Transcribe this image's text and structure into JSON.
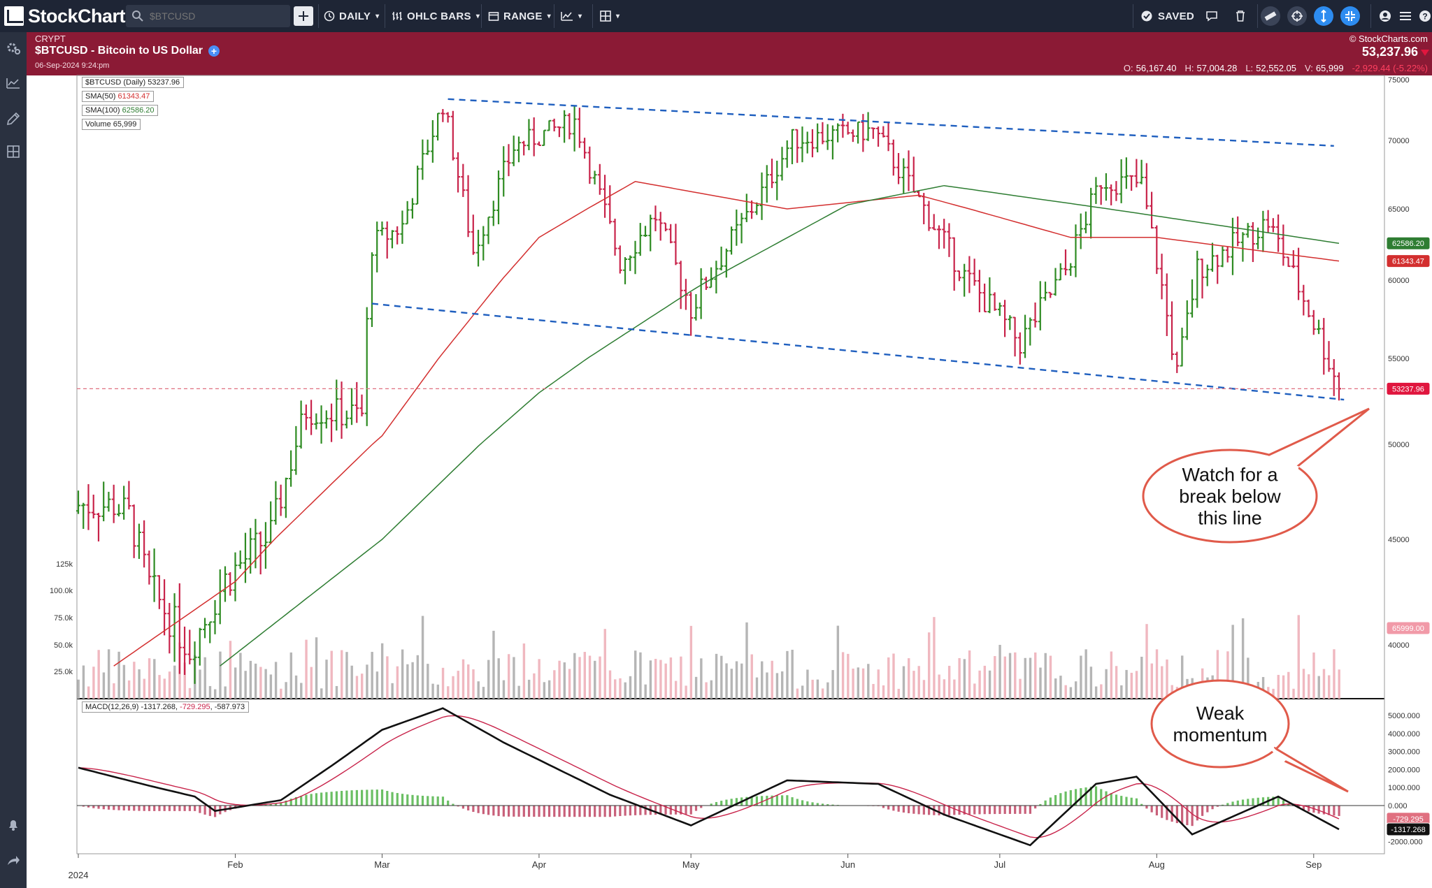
{
  "toolbar": {
    "logo_text": "StockCharts",
    "search_placeholder": "$BTCUSD",
    "period_label": "DAILY",
    "chart_type_label": "OHLC BARS",
    "range_label": "RANGE",
    "saved_label": "SAVED"
  },
  "header": {
    "exchange": "CRYPT",
    "title": "$BTCUSD - Bitcoin to US Dollar",
    "datetime": "06-Sep-2024 9:24:pm",
    "copyright": "© StockCharts.com",
    "last_price": "53,237.96",
    "ohlc": {
      "open_label": "O:",
      "open": "56,167.40",
      "high_label": "H:",
      "high": "57,004.28",
      "low_label": "L:",
      "low": "52,552.05",
      "vol_label": "V:",
      "vol": "65,999",
      "change": "-2,929.44 (-5.22%)"
    }
  },
  "legend": {
    "price": "$BTCUSD (Daily) 53237.96",
    "sma50_label": "SMA(50)",
    "sma50_value": "61343.47",
    "sma100_label": "SMA(100)",
    "sma100_value": "62586.20",
    "volume_label": "Volume",
    "volume_value": "65,999",
    "macd_params": "MACD(12,26,9)",
    "macd_value": "-1317.268",
    "macd_signal": "-729.295",
    "macd_hist": "-587.973"
  },
  "annotations": {
    "callout1": [
      "Watch for a",
      "break below",
      "this line"
    ],
    "callout2": [
      "Weak",
      "momentum"
    ]
  },
  "colors": {
    "frame": "#8b1a35",
    "toolbar": "#1e2535",
    "up_bar": "#2e8b22",
    "down_bar": "#c8234a",
    "sma50": "#d32f2f",
    "sma100": "#2e7d32",
    "trendline": "#1f5fbf",
    "callout": "#e05a4a"
  },
  "chart_data": {
    "type": "ohlc",
    "price_axis": {
      "min": 39000,
      "max": 75000,
      "ticks": [
        40000,
        45000,
        50000,
        55000,
        60000,
        65000,
        70000,
        75000
      ]
    },
    "x_labels": [
      "2024",
      "Feb",
      "Mar",
      "Apr",
      "May",
      "Jun",
      "Jul",
      "Aug",
      "Sep"
    ],
    "last_price_tag": "53237.96",
    "sma50_tag": "61343.47",
    "sma100_tag": "62586.20",
    "volume_axis": {
      "ticks": [
        "25.0k",
        "50.0k",
        "75.0k",
        "100.0k",
        "125k"
      ]
    },
    "volume_tag": "65999.00",
    "macd_axis": {
      "min": -2000,
      "max": 5000,
      "ticks": [
        "5000.000",
        "4000.000",
        "3000.000",
        "2000.000",
        "1000.000",
        "0.000",
        "-1000.000",
        "-2000.000"
      ]
    },
    "macd_tag": "-1317.268",
    "signal_tag": "-729.295",
    "price_close_anchors": [
      {
        "date": "2024-01-08",
        "close": 46800
      },
      {
        "date": "2024-01-11",
        "close": 46300
      },
      {
        "date": "2024-01-15",
        "close": 42800
      },
      {
        "date": "2024-01-23",
        "close": 39800
      },
      {
        "date": "2024-01-30",
        "close": 43100
      },
      {
        "date": "2024-02-08",
        "close": 45300
      },
      {
        "date": "2024-02-15",
        "close": 52000
      },
      {
        "date": "2024-02-26",
        "close": 51700
      },
      {
        "date": "2024-02-28",
        "close": 62500
      },
      {
        "date": "2024-03-05",
        "close": 63800
      },
      {
        "date": "2024-03-13",
        "close": 73000
      },
      {
        "date": "2024-03-19",
        "close": 62000
      },
      {
        "date": "2024-03-27",
        "close": 69500
      },
      {
        "date": "2024-04-08",
        "close": 71600
      },
      {
        "date": "2024-04-17",
        "close": 61300
      },
      {
        "date": "2024-04-24",
        "close": 64500
      },
      {
        "date": "2024-05-01",
        "close": 58200
      },
      {
        "date": "2024-05-15",
        "close": 66200
      },
      {
        "date": "2024-05-21",
        "close": 70100
      },
      {
        "date": "2024-06-06",
        "close": 70800
      },
      {
        "date": "2024-06-13",
        "close": 66800
      },
      {
        "date": "2024-06-24",
        "close": 60300
      },
      {
        "date": "2024-07-05",
        "close": 56000
      },
      {
        "date": "2024-07-14",
        "close": 60700
      },
      {
        "date": "2024-07-21",
        "close": 67100
      },
      {
        "date": "2024-07-29",
        "close": 66800
      },
      {
        "date": "2024-08-05",
        "close": 54000
      },
      {
        "date": "2024-08-09",
        "close": 60800
      },
      {
        "date": "2024-08-23",
        "close": 64100
      },
      {
        "date": "2024-09-01",
        "close": 57300
      },
      {
        "date": "2024-09-06",
        "close": 53237.96
      }
    ],
    "sma50_anchors": [
      {
        "date": "2024-01-08",
        "value": 39000
      },
      {
        "date": "2024-02-01",
        "value": 43000
      },
      {
        "date": "2024-03-01",
        "value": 50500
      },
      {
        "date": "2024-04-01",
        "value": 63000
      },
      {
        "date": "2024-04-20",
        "value": 67000
      },
      {
        "date": "2024-05-20",
        "value": 65000
      },
      {
        "date": "2024-06-15",
        "value": 66000
      },
      {
        "date": "2024-07-15",
        "value": 63000
      },
      {
        "date": "2024-08-01",
        "value": 63000
      },
      {
        "date": "2024-09-06",
        "value": 61343.47
      }
    ],
    "sma100_anchors": [
      {
        "date": "2024-01-29",
        "value": 39000
      },
      {
        "date": "2024-03-01",
        "value": 45000
      },
      {
        "date": "2024-04-01",
        "value": 53000
      },
      {
        "date": "2024-05-01",
        "value": 59300
      },
      {
        "date": "2024-06-01",
        "value": 65300
      },
      {
        "date": "2024-06-20",
        "value": 66700
      },
      {
        "date": "2024-08-01",
        "value": 64500
      },
      {
        "date": "2024-09-06",
        "value": 62586.2
      }
    ],
    "upper_trendline": [
      {
        "date": "2024-03-14",
        "value": 73400
      },
      {
        "date": "2024-09-05",
        "value": 69600
      }
    ],
    "lower_trendline": [
      {
        "date": "2024-02-28",
        "value": 58500
      },
      {
        "date": "2024-09-07",
        "value": 52600
      }
    ],
    "macd_anchors": [
      {
        "date": "2024-01-01",
        "value": 2100
      },
      {
        "date": "2024-01-15",
        "value": 1100
      },
      {
        "date": "2024-01-24",
        "value": 500
      },
      {
        "date": "2024-01-28",
        "value": -300
      },
      {
        "date": "2024-02-10",
        "value": 300
      },
      {
        "date": "2024-02-20",
        "value": 2200
      },
      {
        "date": "2024-03-01",
        "value": 4200
      },
      {
        "date": "2024-03-13",
        "value": 5400
      },
      {
        "date": "2024-03-25",
        "value": 3500
      },
      {
        "date": "2024-04-15",
        "value": 600
      },
      {
        "date": "2024-05-01",
        "value": -1100
      },
      {
        "date": "2024-05-20",
        "value": 1400
      },
      {
        "date": "2024-06-07",
        "value": 1200
      },
      {
        "date": "2024-06-20",
        "value": -500
      },
      {
        "date": "2024-07-07",
        "value": -2200
      },
      {
        "date": "2024-07-20",
        "value": 1200
      },
      {
        "date": "2024-07-28",
        "value": 1600
      },
      {
        "date": "2024-08-08",
        "value": -1600
      },
      {
        "date": "2024-08-25",
        "value": 500
      },
      {
        "date": "2024-09-06",
        "value": -1317.268
      }
    ]
  }
}
